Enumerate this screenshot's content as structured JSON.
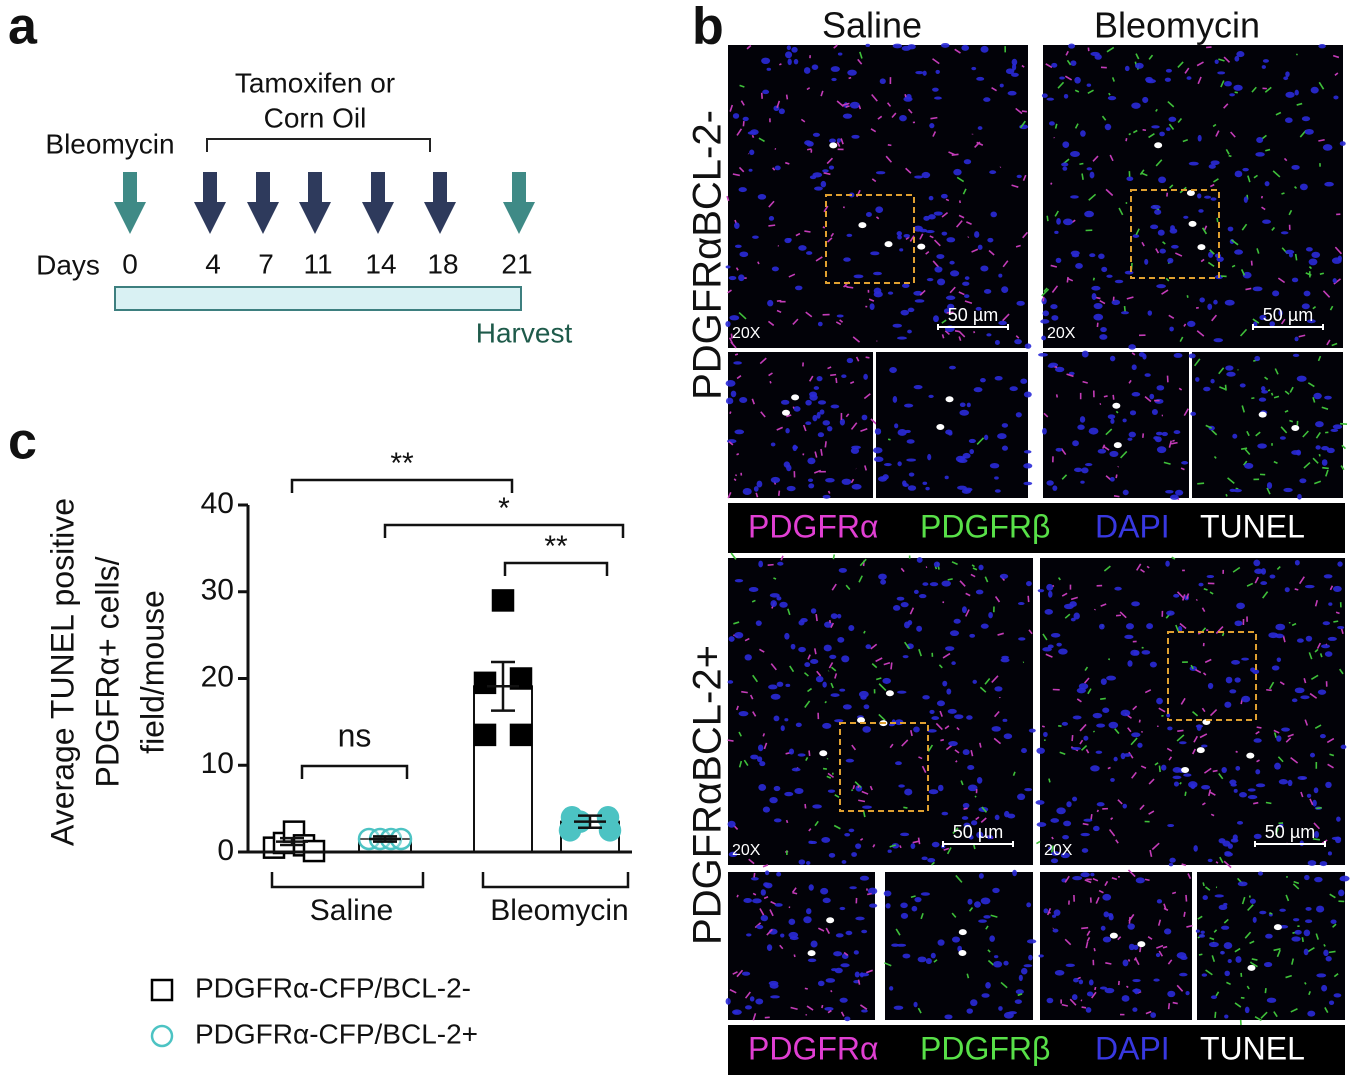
{
  "panel_a": {
    "label": "a",
    "bleomycin": "Bleomycin",
    "treatment": [
      "Tamoxifen or",
      "Corn Oil"
    ],
    "days_label": "Days",
    "days": [
      0,
      4,
      7,
      11,
      14,
      18,
      21
    ],
    "harvest": "Harvest"
  },
  "panel_b": {
    "label": "b",
    "columns": [
      "Saline",
      "Bleomycin"
    ],
    "rows": [
      "PDGFRαBCL-2-",
      "PDGFRαBCL-2+"
    ],
    "magnification": "20X",
    "scale_bar": "50 µm",
    "channels": [
      {
        "name": "PDGFRα",
        "color": "#e03fd2"
      },
      {
        "name": "PDGFRβ",
        "color": "#58e048"
      },
      {
        "name": "DAPI",
        "color": "#3838e0"
      },
      {
        "name": "TUNEL",
        "color": "#ffffff"
      }
    ]
  },
  "chart_data": {
    "type": "bar",
    "label": "c",
    "ylabel": [
      "Average TUNEL positive",
      "PDGFRα+ cells/",
      "field/mouse"
    ],
    "categories": [
      "Saline",
      "Bleomycin"
    ],
    "series": [
      {
        "name": "PDGFRα-CFP/BCL-2-",
        "color": "#000000",
        "marker": "square",
        "values": [
          1.2,
          19.1
        ],
        "errors": [
          0.4,
          2.8
        ],
        "points": [
          [
            0.5,
            1.5,
            2,
            1,
            0.8
          ],
          [
            29,
            19.5,
            20,
            13.5,
            13.5
          ]
        ]
      },
      {
        "name": "PDGFRα-CFP/BCL-2+",
        "color": "#4cc3c3",
        "marker": "circle",
        "values": [
          1.5,
          3.5
        ],
        "errors": [
          0.3,
          0.7
        ],
        "points": [
          [
            1.5,
            1.5,
            1.5,
            1.5
          ],
          [
            4,
            4,
            3.5,
            2.5,
            2.5
          ]
        ]
      }
    ],
    "ylim": [
      0,
      40
    ],
    "yticks": [
      0,
      10,
      20,
      30,
      40
    ],
    "significance": [
      {
        "label": "**",
        "from": [
          0,
          0
        ],
        "to": [
          0,
          1
        ]
      },
      {
        "label": "*",
        "from": [
          1,
          0
        ],
        "to": [
          1,
          1
        ]
      },
      {
        "label": "**",
        "from": [
          0,
          1
        ],
        "to": [
          1,
          1
        ]
      },
      {
        "label": "ns",
        "from": [
          0,
          0
        ],
        "to": [
          1,
          0
        ]
      }
    ]
  }
}
